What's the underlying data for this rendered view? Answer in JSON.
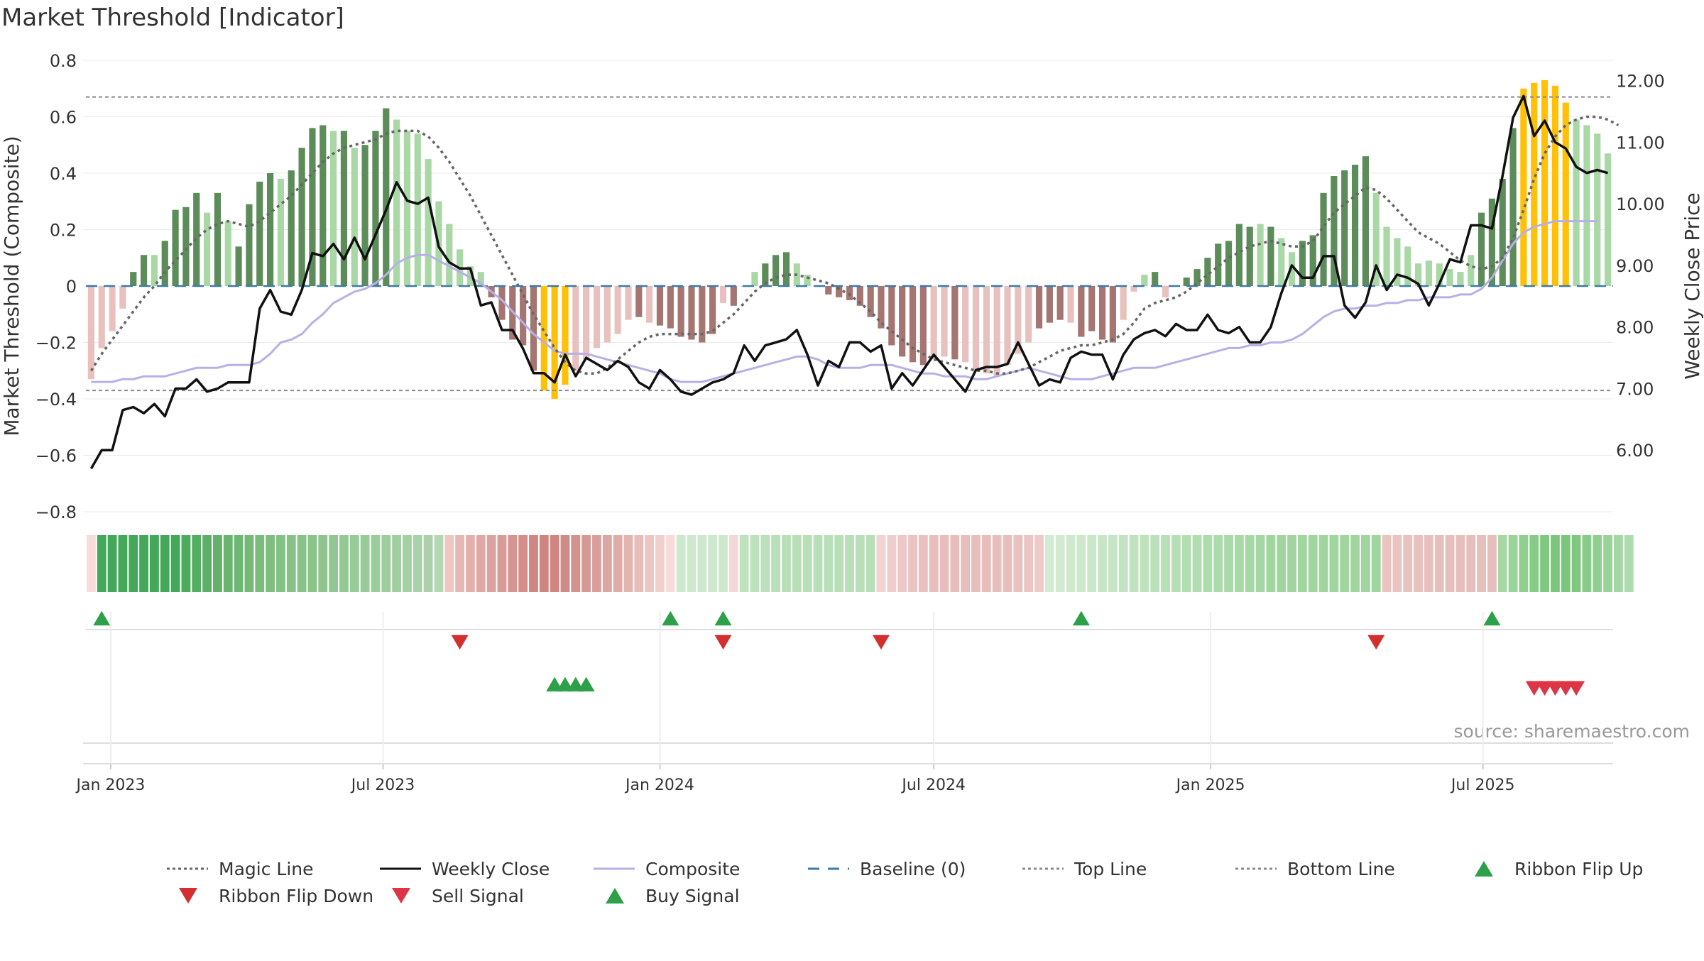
{
  "chart_data": {
    "type": "bar",
    "title": "Market Threshold [Indicator]",
    "ylabel_left": "Market Threshold (Composite)",
    "ylabel_right": "Weekly Close Price",
    "source": "source: sharemaestro.com",
    "ylim_left": [
      -0.8,
      0.8
    ],
    "ylim_right": [
      5.0,
      12.33
    ],
    "grid": true,
    "legend_position": "bottom",
    "left_ticks": [
      "0.8",
      "0.6",
      "0.4",
      "0.2",
      "0",
      "−0.2",
      "−0.4",
      "−0.6",
      "−0.8"
    ],
    "right_ticks": [
      "12.00",
      "11.00",
      "10.00",
      "9.00",
      "8.00",
      "7.00",
      "6.00"
    ],
    "x_start": "2022-12-19",
    "x_interval": "1 week",
    "x_ticks": [
      "Jan 2023",
      "Jul 2023",
      "Jan 2024",
      "Jul 2024",
      "Jan 2025",
      "Jul 2025"
    ],
    "composite_bars": [
      -0.33,
      -0.22,
      -0.16,
      -0.08,
      0.05,
      0.11,
      0.11,
      0.16,
      0.27,
      0.28,
      0.33,
      0.26,
      0.33,
      0.23,
      0.14,
      0.29,
      0.37,
      0.4,
      0.38,
      0.41,
      0.49,
      0.56,
      0.57,
      0.55,
      0.55,
      0.49,
      0.5,
      0.55,
      0.63,
      0.59,
      0.55,
      0.54,
      0.45,
      0.3,
      0.22,
      0.13,
      0.07,
      0.05,
      -0.04,
      -0.12,
      -0.19,
      -0.21,
      -0.3,
      -0.37,
      -0.4,
      -0.35,
      -0.3,
      -0.26,
      -0.22,
      -0.2,
      -0.17,
      -0.12,
      -0.11,
      -0.13,
      -0.14,
      -0.15,
      -0.18,
      -0.19,
      -0.2,
      -0.17,
      -0.06,
      -0.07,
      0.0,
      0.05,
      0.08,
      0.11,
      0.12,
      0.08,
      0.04,
      0.0,
      -0.03,
      -0.04,
      -0.05,
      -0.07,
      -0.11,
      -0.15,
      -0.21,
      -0.25,
      -0.27,
      -0.28,
      -0.26,
      -0.25,
      -0.26,
      -0.27,
      -0.3,
      -0.31,
      -0.32,
      -0.28,
      -0.24,
      -0.2,
      -0.15,
      -0.13,
      -0.12,
      -0.13,
      -0.18,
      -0.16,
      -0.19,
      -0.2,
      -0.12,
      -0.02,
      0.04,
      0.05,
      -0.04,
      0.0,
      0.03,
      0.06,
      0.1,
      0.15,
      0.16,
      0.22,
      0.21,
      0.22,
      0.21,
      0.17,
      0.12,
      0.16,
      0.18,
      0.33,
      0.39,
      0.41,
      0.43,
      0.46,
      0.33,
      0.21,
      0.17,
      0.14,
      0.08,
      0.09,
      0.08,
      0.06,
      0.05,
      0.11,
      0.26,
      0.31,
      0.38,
      0.56,
      0.7,
      0.72,
      0.73,
      0.71,
      0.65,
      0.59,
      0.57,
      0.54,
      0.47
    ],
    "bar_colors": [
      "#e8c1bf",
      "#e8c1bf",
      "#e8c1bf",
      "#e8c1bf",
      "#5c8c59",
      "#5c8c59",
      "#a9d8a6",
      "#5c8c59",
      "#5c8c59",
      "#5c8c59",
      "#5c8c59",
      "#a9d8a6",
      "#5c8c59",
      "#a9d8a6",
      "#5c8c59",
      "#5c8c59",
      "#5c8c59",
      "#5c8c59",
      "#a9d8a6",
      "#5c8c59",
      "#5c8c59",
      "#5c8c59",
      "#5c8c59",
      "#a9d8a6",
      "#5c8c59",
      "#a9d8a6",
      "#5c8c59",
      "#5c8c59",
      "#5c8c59",
      "#a9d8a6",
      "#a9d8a6",
      "#a9d8a6",
      "#a9d8a6",
      "#a9d8a6",
      "#a9d8a6",
      "#a9d8a6",
      "#a9d8a6",
      "#a9d8a6",
      "#a57572",
      "#a57572",
      "#a57572",
      "#a57572",
      "#a57572",
      "#ffc107",
      "#ffc107",
      "#ffc107",
      "#e8c1bf",
      "#e8c1bf",
      "#e8c1bf",
      "#e8c1bf",
      "#e8c1bf",
      "#e8c1bf",
      "#a57572",
      "#e8c1bf",
      "#a57572",
      "#a57572",
      "#a57572",
      "#a57572",
      "#a57572",
      "#a57572",
      "#e8c1bf",
      "#a57572",
      "#a9d8a6",
      "#a9d8a6",
      "#5c8c59",
      "#5c8c59",
      "#5c8c59",
      "#a9d8a6",
      "#a9d8a6",
      "#a9d8a6",
      "#a57572",
      "#a57572",
      "#a57572",
      "#a57572",
      "#a57572",
      "#a57572",
      "#a57572",
      "#a57572",
      "#a57572",
      "#a57572",
      "#e8c1bf",
      "#e8c1bf",
      "#a57572",
      "#e8c1bf",
      "#e8c1bf",
      "#e8c1bf",
      "#e8c1bf",
      "#e8c1bf",
      "#e8c1bf",
      "#e8c1bf",
      "#a57572",
      "#a57572",
      "#a57572",
      "#e8c1bf",
      "#a57572",
      "#a57572",
      "#a57572",
      "#a57572",
      "#e8c1bf",
      "#e8c1bf",
      "#a9d8a6",
      "#5c8c59",
      "#e8c1bf",
      "#e8c1bf",
      "#5c8c59",
      "#5c8c59",
      "#5c8c59",
      "#5c8c59",
      "#5c8c59",
      "#5c8c59",
      "#5c8c59",
      "#a9d8a6",
      "#5c8c59",
      "#a9d8a6",
      "#a9d8a6",
      "#5c8c59",
      "#5c8c59",
      "#5c8c59",
      "#5c8c59",
      "#5c8c59",
      "#5c8c59",
      "#5c8c59",
      "#a9d8a6",
      "#a9d8a6",
      "#a9d8a6",
      "#a9d8a6",
      "#a9d8a6",
      "#a9d8a6",
      "#a9d8a6",
      "#a9d8a6",
      "#a9d8a6",
      "#a9d8a6",
      "#5c8c59",
      "#5c8c59",
      "#5c8c59",
      "#5c8c59",
      "#ffc107",
      "#ffc107",
      "#ffc107",
      "#ffc107",
      "#ffc107",
      "#a9d8a6",
      "#a9d8a6",
      "#a9d8a6",
      "#a9d8a6"
    ],
    "magic_line": [
      -0.3,
      -0.24,
      -0.19,
      -0.14,
      -0.09,
      -0.04,
      0.0,
      0.05,
      0.09,
      0.13,
      0.17,
      0.2,
      0.22,
      0.23,
      0.22,
      0.21,
      0.23,
      0.26,
      0.29,
      0.32,
      0.36,
      0.4,
      0.44,
      0.47,
      0.49,
      0.5,
      0.51,
      0.52,
      0.54,
      0.55,
      0.55,
      0.55,
      0.53,
      0.49,
      0.44,
      0.38,
      0.32,
      0.25,
      0.18,
      0.11,
      0.04,
      -0.03,
      -0.1,
      -0.16,
      -0.22,
      -0.27,
      -0.3,
      -0.31,
      -0.31,
      -0.29,
      -0.26,
      -0.23,
      -0.2,
      -0.18,
      -0.17,
      -0.17,
      -0.17,
      -0.17,
      -0.17,
      -0.16,
      -0.13,
      -0.1,
      -0.06,
      -0.02,
      0.01,
      0.03,
      0.04,
      0.04,
      0.03,
      0.02,
      0.01,
      -0.01,
      -0.03,
      -0.06,
      -0.09,
      -0.13,
      -0.16,
      -0.19,
      -0.22,
      -0.24,
      -0.26,
      -0.27,
      -0.28,
      -0.29,
      -0.3,
      -0.3,
      -0.31,
      -0.31,
      -0.3,
      -0.29,
      -0.27,
      -0.25,
      -0.23,
      -0.22,
      -0.21,
      -0.21,
      -0.2,
      -0.19,
      -0.17,
      -0.13,
      -0.08,
      -0.06,
      -0.05,
      -0.04,
      -0.02,
      0.01,
      0.04,
      0.07,
      0.1,
      0.12,
      0.14,
      0.15,
      0.16,
      0.15,
      0.14,
      0.14,
      0.16,
      0.21,
      0.26,
      0.29,
      0.32,
      0.35,
      0.34,
      0.31,
      0.27,
      0.23,
      0.19,
      0.17,
      0.15,
      0.12,
      0.09,
      0.07,
      0.06,
      0.07,
      0.1,
      0.17,
      0.27,
      0.38,
      0.47,
      0.53,
      0.57,
      0.59,
      0.6,
      0.6,
      0.59,
      0.57
    ],
    "composite_line": [
      -0.34,
      -0.34,
      -0.34,
      -0.33,
      -0.33,
      -0.32,
      -0.32,
      -0.32,
      -0.31,
      -0.3,
      -0.29,
      -0.29,
      -0.29,
      -0.28,
      -0.28,
      -0.28,
      -0.27,
      -0.24,
      -0.2,
      -0.19,
      -0.17,
      -0.13,
      -0.1,
      -0.06,
      -0.04,
      -0.02,
      -0.01,
      0.01,
      0.04,
      0.08,
      0.1,
      0.11,
      0.11,
      0.09,
      0.07,
      0.05,
      0.03,
      0.01,
      -0.02,
      -0.05,
      -0.09,
      -0.13,
      -0.17,
      -0.2,
      -0.23,
      -0.24,
      -0.24,
      -0.24,
      -0.25,
      -0.26,
      -0.27,
      -0.28,
      -0.29,
      -0.3,
      -0.31,
      -0.33,
      -0.34,
      -0.34,
      -0.34,
      -0.33,
      -0.32,
      -0.31,
      -0.3,
      -0.29,
      -0.28,
      -0.27,
      -0.26,
      -0.25,
      -0.25,
      -0.26,
      -0.28,
      -0.29,
      -0.29,
      -0.29,
      -0.28,
      -0.28,
      -0.28,
      -0.29,
      -0.3,
      -0.31,
      -0.31,
      -0.32,
      -0.32,
      -0.32,
      -0.33,
      -0.33,
      -0.32,
      -0.31,
      -0.3,
      -0.29,
      -0.3,
      -0.31,
      -0.32,
      -0.33,
      -0.33,
      -0.33,
      -0.32,
      -0.31,
      -0.3,
      -0.29,
      -0.29,
      -0.29,
      -0.28,
      -0.27,
      -0.26,
      -0.25,
      -0.24,
      -0.23,
      -0.22,
      -0.22,
      -0.21,
      -0.21,
      -0.2,
      -0.2,
      -0.19,
      -0.17,
      -0.14,
      -0.11,
      -0.09,
      -0.08,
      -0.08,
      -0.07,
      -0.07,
      -0.06,
      -0.06,
      -0.05,
      -0.05,
      -0.04,
      -0.04,
      -0.04,
      -0.03,
      -0.03,
      -0.01,
      0.03,
      0.09,
      0.15,
      0.19,
      0.21,
      0.22,
      0.23,
      0.23,
      0.23,
      0.23,
      0.23
    ],
    "weekly_close": [
      5.7,
      6.0,
      6.0,
      6.65,
      6.7,
      6.6,
      6.75,
      6.55,
      7.0,
      7.0,
      7.15,
      6.95,
      7.0,
      7.1,
      7.1,
      7.1,
      8.3,
      8.6,
      8.25,
      8.2,
      8.6,
      9.2,
      9.15,
      9.35,
      9.1,
      9.45,
      9.1,
      9.5,
      9.9,
      10.35,
      10.05,
      10.0,
      10.1,
      9.3,
      9.05,
      8.95,
      8.95,
      8.35,
      8.4,
      7.95,
      7.95,
      7.65,
      7.25,
      7.25,
      7.1,
      7.55,
      7.2,
      7.5,
      7.4,
      7.3,
      7.45,
      7.35,
      7.1,
      7.0,
      7.3,
      7.15,
      6.95,
      6.9,
      7.0,
      7.1,
      7.15,
      7.25,
      7.7,
      7.45,
      7.7,
      7.75,
      7.8,
      7.95,
      7.55,
      7.05,
      7.45,
      7.35,
      7.75,
      7.75,
      7.6,
      7.7,
      7.0,
      7.25,
      7.05,
      7.3,
      7.55,
      7.35,
      7.15,
      6.95,
      7.3,
      7.35,
      7.35,
      7.4,
      7.75,
      7.4,
      7.05,
      7.15,
      7.1,
      7.5,
      7.6,
      7.55,
      7.55,
      7.15,
      7.55,
      7.8,
      7.9,
      7.95,
      7.85,
      8.05,
      7.95,
      7.95,
      8.2,
      7.95,
      7.9,
      8.0,
      7.75,
      7.75,
      8.0,
      8.55,
      9.0,
      8.8,
      8.8,
      9.15,
      9.15,
      8.35,
      8.15,
      8.4,
      9.0,
      8.6,
      8.85,
      8.8,
      8.7,
      8.35,
      8.7,
      9.1,
      9.05,
      9.65,
      9.65,
      9.6,
      10.45,
      11.4,
      11.75,
      11.1,
      11.35,
      11.0,
      10.9,
      10.6,
      10.5,
      10.55,
      10.5
    ],
    "top_line": 0.67,
    "bottom_line": -0.37,
    "baseline": 0,
    "ribbon_colors": [
      "#f7dcdb",
      "#43a85a",
      "#43a85a",
      "#43a85a",
      "#43a85a",
      "#43a85a",
      "#43a85a",
      "#43a85a",
      "#43a85a",
      "#4cab5d",
      "#55ad62",
      "#5caf66",
      "#63b16b",
      "#69b46f",
      "#6fb774",
      "#74b977",
      "#79bc7b",
      "#7ebe7e",
      "#84c184",
      "#86c287",
      "#88c388",
      "#89c489",
      "#8dc58d",
      "#91c791",
      "#94c994",
      "#96ca96",
      "#98cb98",
      "#9bcc9b",
      "#9ecd9e",
      "#a0ce9f",
      "#a4d0a3",
      "#a8d2a7",
      "#adcfad",
      "#b2d8b1",
      "#f0c6c3",
      "#e5b8b5",
      "#e3b0ad",
      "#dfa8a5",
      "#dca29f",
      "#d89b98",
      "#d59592",
      "#d38e8a",
      "#d08783",
      "#cf8580",
      "#cf8681",
      "#d18b86",
      "#d3928e",
      "#d69894",
      "#d99f9b",
      "#dca6a2",
      "#dfada9",
      "#e3b5b1",
      "#e7bdb9",
      "#ebc6c3",
      "#f0d0cd",
      "#f7dcdb",
      "#cde8cd",
      "#cde8cd",
      "#cde8cd",
      "#cde8cd",
      "#cde8cd",
      "#f4d8d7",
      "#bfe2be",
      "#bde1bc",
      "#bbe0bb",
      "#b9dfb9",
      "#b9dfb9",
      "#b9dfb9",
      "#b8dfb8",
      "#b8dfb8",
      "#b8dfb8",
      "#b8dfb8",
      "#b8dfb8",
      "#b8dfb8",
      "#b8dfb8",
      "#f2d3d2",
      "#efcdcb",
      "#edc8c6",
      "#ebc4c2",
      "#e9c0be",
      "#e8bebc",
      "#e8bebc",
      "#e8bebc",
      "#e8bebc",
      "#e8bebc",
      "#e8bebc",
      "#e8bebc",
      "#e8bebc",
      "#e9c1bf",
      "#ebc5c3",
      "#eecbc9",
      "#d4ebd3",
      "#d2ead1",
      "#cfe9ce",
      "#cde8cc",
      "#cae7c9",
      "#c8e6c7",
      "#c5e5c4",
      "#c3e4c2",
      "#c0e3bf",
      "#bde2bc",
      "#bbe1ba",
      "#b8e0b7",
      "#b6dfb5",
      "#b3deb2",
      "#b1ddb0",
      "#aedcad",
      "#acdbab",
      "#aadaa9",
      "#a8d9a7",
      "#a6d8a5",
      "#a4d7a3",
      "#a2d6a1",
      "#a0d59f",
      "#a0d59f",
      "#a0d59f",
      "#a0d59f",
      "#a0d59f",
      "#a0d59f",
      "#a0d59f",
      "#a0d59f",
      "#a0d59f",
      "#a0d59f",
      "#ebc4c2",
      "#eac3c1",
      "#e9c1bf",
      "#e8c0be",
      "#e7bfbd",
      "#e6bebc",
      "#e6bebc",
      "#e6bebc",
      "#e6bebc",
      "#e6bebc",
      "#e6bebc",
      "#a6d7a5",
      "#9ad49a",
      "#8fcf8f",
      "#86cb86",
      "#80c880",
      "#7cc67c",
      "#7cc67c",
      "#80c880",
      "#88cb88",
      "#90cf90",
      "#9ad39a",
      "#a4d7a4",
      "#aedbae"
    ],
    "ribbon_flip_up": [
      "2022-12-26",
      "2024-01-08",
      "2024-02-12",
      "2024-10-07",
      "2025-07-07"
    ],
    "ribbon_flip_down": [
      "2023-08-21",
      "2024-02-12",
      "2024-05-27",
      "2025-04-21"
    ],
    "buy_signal": [
      "2023-10-23",
      "2023-10-30",
      "2023-11-06",
      "2023-11-13"
    ],
    "sell_signal": [
      "2025-08-04",
      "2025-08-11",
      "2025-08-18",
      "2025-08-25",
      "2025-09-01"
    ],
    "legend": [
      {
        "label": "Magic Line",
        "style": "dotted",
        "color": "#666666"
      },
      {
        "label": "Weekly Close",
        "style": "solid",
        "color": "#111111"
      },
      {
        "label": "Composite",
        "style": "solid",
        "color": "#b7b0e6"
      },
      {
        "label": "Baseline (0)",
        "style": "dashed",
        "color": "#3d7aa8"
      },
      {
        "label": "Top Line",
        "style": "dotted",
        "color": "#8a8a8a"
      },
      {
        "label": "Bottom Line",
        "style": "dotted",
        "color": "#8a8a8a"
      },
      {
        "label": "Ribbon Flip Up",
        "style": "triangle-up",
        "color": "#2ea04a"
      },
      {
        "label": "Ribbon Flip Down",
        "style": "triangle-down",
        "color": "#d32f2f"
      },
      {
        "label": "Sell Signal",
        "style": "triangle-down",
        "color": "#dc3545"
      },
      {
        "label": "Buy Signal",
        "style": "triangle-up",
        "color": "#2ea04a"
      }
    ]
  }
}
